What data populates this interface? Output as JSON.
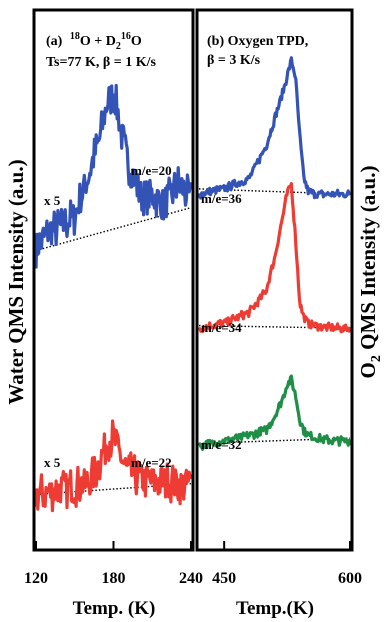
{
  "left_panel": {
    "panel_label": "(a)",
    "title_iso1": "18",
    "title_mid": "O + D",
    "title_sub": "2",
    "title_iso2": "16",
    "title_end": "O",
    "conditions": "Ts=77 K, β = 1 K/s",
    "ylabel": "Water QMS Intensity (a.u.)",
    "xlabel": "Temp. (K)",
    "traces": [
      {
        "label": "m/e=20",
        "scale": "x 5",
        "color": "#3353b7"
      },
      {
        "label": "m/e=22",
        "scale": "x 5",
        "color": "#ee3b33"
      }
    ]
  },
  "right_panel": {
    "panel_label": "(b)",
    "title_line1": "Oxygen TPD,",
    "title_line2": "β = 3 K/s",
    "ylabel_pre": "O",
    "ylabel_sub": "2",
    "ylabel_post": " QMS Intensity (a.u.)",
    "xlabel": "Temp.(K)",
    "traces": [
      {
        "label": "m/e=36",
        "color": "#3353b7"
      },
      {
        "label": "m/e=34",
        "color": "#ee3b33"
      },
      {
        "label": "m/e=32",
        "color": "#1f8f48"
      }
    ]
  },
  "chart_data": [
    {
      "type": "line",
      "title": "(a) 18O + D2 16O Ts=77 K, β = 1 K/s",
      "xlabel": "Temp. (K)",
      "ylabel": "Water QMS Intensity (a.u.)",
      "xlim": [
        120,
        240
      ],
      "ylim": [
        0,
        10
      ],
      "x_ticks": [
        "120",
        "180",
        "240"
      ],
      "grid": false,
      "series": [
        {
          "name": "m/e=20",
          "scale": "x 5",
          "color": "#3353b7",
          "x": [
            120,
            130,
            140,
            150,
            160,
            165,
            170,
            175,
            180,
            185,
            190,
            200,
            210,
            220,
            230,
            240
          ],
          "y": [
            5.6,
            5.9,
            6.0,
            6.2,
            6.9,
            7.3,
            7.7,
            8.3,
            8.5,
            7.9,
            7.3,
            6.6,
            6.6,
            6.4,
            6.8,
            6.5
          ]
        },
        {
          "name": "m/e=22",
          "scale": "x 5",
          "color": "#ee3b33",
          "x": [
            120,
            130,
            140,
            150,
            160,
            165,
            170,
            175,
            180,
            185,
            190,
            200,
            210,
            220,
            230,
            240
          ],
          "y": [
            1.0,
            1.05,
            1.1,
            1.15,
            1.2,
            1.35,
            1.65,
            2.0,
            2.05,
            1.75,
            1.45,
            1.3,
            1.25,
            1.25,
            1.2,
            1.2
          ]
        }
      ],
      "baselines": [
        {
          "for": "m/e=20",
          "x": [
            120,
            240
          ],
          "y": [
            5.55,
            6.35
          ]
        },
        {
          "for": "m/e=22",
          "x": [
            120,
            240
          ],
          "y": [
            1.0,
            1.2
          ]
        }
      ]
    },
    {
      "type": "line",
      "title": "(b) Oxygen TPD, β = 3 K/s",
      "xlabel": "Temp.(K)",
      "ylabel": "O2 QMS Intensity (a.u.)",
      "xlim": [
        420,
        600
      ],
      "ylim": [
        0,
        10
      ],
      "x_ticks": [
        "450",
        "600"
      ],
      "grid": false,
      "series": [
        {
          "name": "m/e=36",
          "color": "#3353b7",
          "x": [
            420,
            450,
            480,
            500,
            510,
            520,
            525,
            530,
            535,
            540,
            545,
            550,
            560,
            580,
            600
          ],
          "y": [
            6.6,
            6.7,
            6.9,
            7.5,
            8.0,
            8.5,
            8.8,
            9.1,
            8.8,
            7.7,
            6.9,
            6.65,
            6.6,
            6.6,
            6.6
          ]
        },
        {
          "name": "m/e=34",
          "color": "#ee3b33",
          "x": [
            420,
            450,
            480,
            500,
            510,
            520,
            525,
            530,
            535,
            540,
            545,
            550,
            560,
            580,
            600
          ],
          "y": [
            4.1,
            4.2,
            4.4,
            4.8,
            5.4,
            6.2,
            6.6,
            6.8,
            5.8,
            4.6,
            4.3,
            4.2,
            4.15,
            4.1,
            4.1
          ]
        },
        {
          "name": "m/e=32",
          "color": "#1f8f48",
          "x": [
            420,
            450,
            480,
            500,
            510,
            520,
            525,
            530,
            535,
            540,
            545,
            550,
            560,
            580,
            600
          ],
          "y": [
            1.9,
            2.0,
            2.1,
            2.2,
            2.45,
            2.8,
            3.05,
            3.15,
            2.85,
            2.4,
            2.2,
            2.1,
            2.05,
            2.0,
            2.0
          ]
        }
      ],
      "baselines": [
        {
          "for": "m/e=36",
          "x": [
            420,
            600
          ],
          "y": [
            6.7,
            6.6
          ]
        },
        {
          "for": "m/e=34",
          "x": [
            420,
            600
          ],
          "y": [
            4.15,
            4.1
          ]
        },
        {
          "for": "m/e=32",
          "x": [
            420,
            600
          ],
          "y": [
            1.95,
            2.05
          ]
        }
      ]
    }
  ]
}
